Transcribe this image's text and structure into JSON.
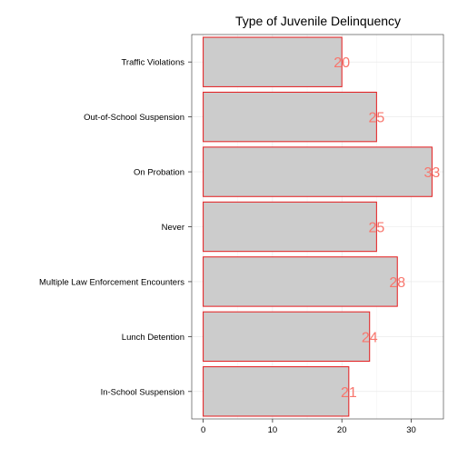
{
  "chart_data": {
    "type": "bar",
    "orientation": "horizontal",
    "title": "Type of Juvenile Delinquency",
    "xlabel": "",
    "ylabel": "",
    "categories": [
      "Traffic Violations",
      "Out-of-School Suspension",
      "On Probation",
      "Never",
      "Multiple Law Enforcement Encounters",
      "Lunch Detention",
      "In-School Suspension"
    ],
    "values": [
      20,
      25,
      33,
      25,
      28,
      24,
      21
    ],
    "xlim": [
      -1.65,
      34.65
    ],
    "x_ticks": [
      0,
      10,
      20,
      30
    ],
    "grid": true,
    "legend": "none",
    "bar_fill": "#cccccc",
    "bar_stroke": "#e41a1c",
    "label_color": "#f8766d"
  }
}
